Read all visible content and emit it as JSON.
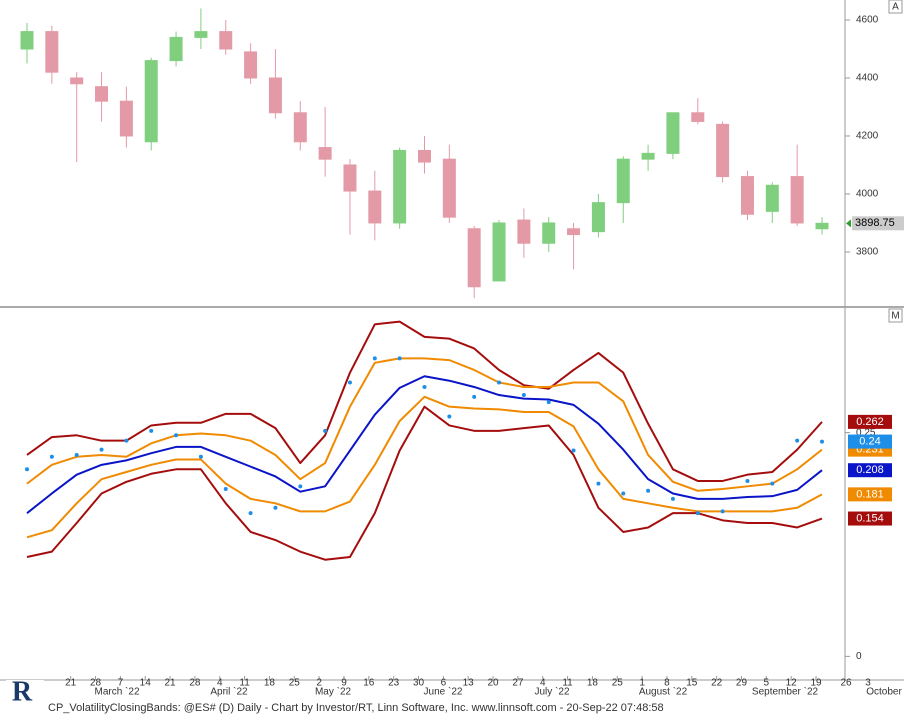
{
  "panel_tags": [
    "A",
    "M"
  ],
  "logo": "R",
  "footer": "CP_VolatilityClosingBands: @ES# (D) Daily - Chart by Investor/RT, Linn Software, Inc. www.linnsoft.com - 20-Sep-22 07:48:58",
  "x_axis": {
    "categories": [
      null,
      null,
      "21",
      "28",
      "7",
      "14",
      "21",
      "28",
      "4",
      "11",
      "18",
      "25",
      "2",
      "9",
      "16",
      "23",
      "30",
      "6",
      "13",
      "20",
      "27",
      "4",
      "11",
      "18",
      "25",
      "1",
      "8",
      "15",
      "22",
      "29",
      "5",
      "12",
      "19"
    ],
    "future": [
      "26",
      "3"
    ],
    "months": [
      "March `22",
      "April `22",
      "May `22",
      "June `22",
      "July `22",
      "August `22",
      "September `22",
      "October"
    ]
  },
  "chart_data": [
    {
      "type": "candlestick",
      "open": [
        4500,
        4560,
        4400,
        4370,
        4320,
        4180,
        4460,
        4540,
        4560,
        4490,
        4400,
        4280,
        4160,
        4100,
        4010,
        3900,
        4150,
        4120,
        3880,
        3700,
        3910,
        3830,
        3880,
        3870,
        3970,
        4120,
        4140,
        4280,
        4240,
        4060,
        3940,
        4060,
        3880
      ],
      "high": [
        4590,
        4580,
        4420,
        4420,
        4370,
        4470,
        4560,
        4640,
        4600,
        4520,
        4500,
        4320,
        4300,
        4120,
        4080,
        4160,
        4200,
        4170,
        3890,
        3910,
        3950,
        3920,
        3900,
        4000,
        4130,
        4170,
        4280,
        4330,
        4250,
        4080,
        4040,
        4170,
        3920
      ],
      "low": [
        4450,
        4380,
        4110,
        4250,
        4160,
        4150,
        4440,
        4500,
        4480,
        4380,
        4260,
        4150,
        4060,
        3860,
        3840,
        3880,
        4070,
        3900,
        3640,
        3700,
        3780,
        3800,
        3740,
        3850,
        3900,
        4080,
        4120,
        4240,
        4040,
        3910,
        3900,
        3890,
        3860
      ],
      "close": [
        4560,
        4420,
        4380,
        4320,
        4200,
        4460,
        4540,
        4560,
        4500,
        4400,
        4280,
        4180,
        4120,
        4010,
        3900,
        4150,
        4110,
        3920,
        3680,
        3900,
        3830,
        3900,
        3860,
        3970,
        4120,
        4140,
        4280,
        4250,
        4060,
        3930,
        4030,
        3900,
        3898.75
      ],
      "up_color": "#7fcf7f",
      "down_color": "#e39aa6",
      "ylim": [
        3617,
        4669
      ],
      "yticks": [
        3800,
        4000,
        4200,
        4400,
        4600
      ]
    },
    {
      "type": "line",
      "series": [
        {
          "color": "#a50d0d",
          "values": [
            0.225,
            0.245,
            0.247,
            0.241,
            0.241,
            0.258,
            0.261,
            0.261,
            0.271,
            0.271,
            0.255,
            0.216,
            0.247,
            0.317,
            0.371,
            0.374,
            0.357,
            0.355,
            0.344,
            0.32,
            0.303,
            0.299,
            0.32,
            0.339,
            0.317,
            0.26,
            0.209,
            0.196,
            0.196,
            0.203,
            0.206,
            0.231,
            0.262
          ]
        },
        {
          "color": "#f08a00",
          "values": [
            0.193,
            0.214,
            0.223,
            0.225,
            0.223,
            0.238,
            0.247,
            0.249,
            0.247,
            0.241,
            0.225,
            0.198,
            0.216,
            0.279,
            0.328,
            0.333,
            0.333,
            0.331,
            0.32,
            0.306,
            0.301,
            0.301,
            0.306,
            0.306,
            0.285,
            0.225,
            0.195,
            0.185,
            0.187,
            0.19,
            0.193,
            0.209,
            0.231
          ]
        },
        {
          "color": "#0a14c8",
          "values": [
            0.16,
            0.182,
            0.203,
            0.214,
            0.219,
            0.227,
            0.234,
            0.234,
            0.223,
            0.212,
            0.201,
            0.184,
            0.19,
            0.23,
            0.27,
            0.3,
            0.313,
            0.308,
            0.301,
            0.292,
            0.288,
            0.287,
            0.281,
            0.26,
            0.231,
            0.198,
            0.182,
            0.176,
            0.176,
            0.178,
            0.179,
            0.186,
            0.208
          ]
        },
        {
          "color": "#f08a00",
          "values": [
            0.133,
            0.141,
            0.171,
            0.198,
            0.206,
            0.214,
            0.22,
            0.22,
            0.193,
            0.176,
            0.171,
            0.162,
            0.162,
            0.173,
            0.214,
            0.263,
            0.29,
            0.279,
            0.277,
            0.276,
            0.273,
            0.273,
            0.257,
            0.209,
            0.176,
            0.171,
            0.166,
            0.162,
            0.162,
            0.162,
            0.162,
            0.166,
            0.181
          ]
        },
        {
          "color": "#a50d0d",
          "values": [
            0.111,
            0.117,
            0.149,
            0.182,
            0.195,
            0.204,
            0.209,
            0.209,
            0.171,
            0.139,
            0.13,
            0.117,
            0.108,
            0.111,
            0.16,
            0.23,
            0.279,
            0.258,
            0.252,
            0.252,
            0.255,
            0.258,
            0.225,
            0.166,
            0.139,
            0.144,
            0.16,
            0.16,
            0.152,
            0.149,
            0.149,
            0.144,
            0.154
          ]
        },
        {
          "color": "#1e8fe8",
          "style": "dots",
          "values": [
            0.209,
            0.223,
            0.225,
            0.231,
            0.241,
            0.252,
            0.247,
            0.223,
            0.187,
            0.16,
            0.166,
            0.19,
            0.252,
            0.306,
            0.333,
            0.333,
            0.301,
            0.268,
            0.29,
            0.306,
            0.292,
            0.284,
            0.23,
            0.193,
            0.182,
            0.185,
            0.176,
            0.16,
            0.162,
            0.196,
            0.193,
            0.241,
            0.24
          ]
        }
      ],
      "ylim": [
        -0.013,
        0.387
      ],
      "yticks": [
        0,
        0.25
      ]
    }
  ]
}
